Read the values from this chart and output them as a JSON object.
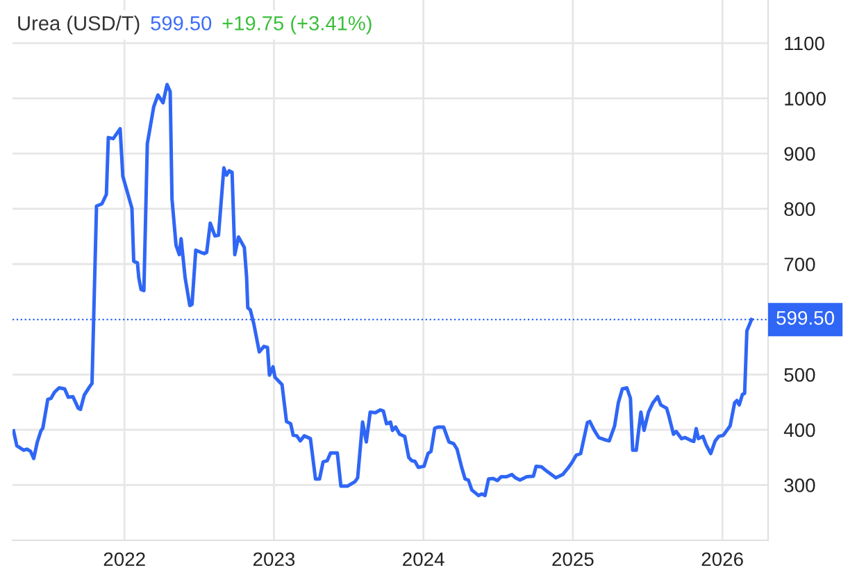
{
  "chart_data": {
    "type": "line",
    "title": "Urea (USD/T)",
    "annotations": [
      "599.50",
      "+19.75 (+3.41%)"
    ],
    "series": [
      {
        "color": "#2f66f5",
        "x": [
          2021.258,
          2021.28,
          2021.326,
          2021.347,
          2021.372,
          2021.393,
          2021.417,
          2021.441,
          2021.454,
          2021.487,
          2021.509,
          2021.532,
          2021.563,
          2021.6,
          2021.624,
          2021.655,
          2021.691,
          2021.706,
          2021.731,
          2021.767,
          2021.783,
          2021.813,
          2021.849,
          2021.879,
          2021.892,
          2021.925,
          2021.971,
          2021.989,
          2022.05,
          2022.062,
          2022.087,
          2022.096,
          2022.111,
          2022.13,
          2022.153,
          2022.196,
          2022.224,
          2022.258,
          2022.285,
          2022.306,
          2022.318,
          2022.345,
          2022.367,
          2022.379,
          2022.406,
          2022.437,
          2022.452,
          2022.477,
          2022.513,
          2022.534,
          2022.55,
          2022.574,
          2022.605,
          2022.629,
          2022.665,
          2022.683,
          2022.701,
          2022.72,
          2022.738,
          2022.763,
          2022.802,
          2022.817,
          2022.825,
          2022.842,
          2022.866,
          2022.902,
          2022.933,
          2022.957,
          2022.97,
          2022.994,
          2023.007,
          2023.054,
          2023.084,
          2023.112,
          2023.129,
          2023.153,
          2023.176,
          2023.203,
          2023.244,
          2023.278,
          2023.305,
          2023.329,
          2023.356,
          2023.379,
          2023.424,
          2023.448,
          2023.491,
          2023.542,
          2023.56,
          2023.593,
          2023.618,
          2023.644,
          2023.679,
          2023.712,
          2023.732,
          2023.753,
          2023.78,
          2023.793,
          2023.814,
          2023.841,
          2023.875,
          2023.902,
          2023.923,
          2023.943,
          2023.966,
          2024.004,
          2024.031,
          2024.051,
          2024.076,
          2024.099,
          2024.135,
          2024.171,
          2024.202,
          2024.225,
          2024.256,
          2024.279,
          2024.301,
          2024.324,
          2024.351,
          2024.369,
          2024.391,
          2024.412,
          2024.436,
          2024.466,
          2024.495,
          2024.52,
          2024.556,
          2024.592,
          2024.616,
          2024.646,
          2024.691,
          2024.736,
          2024.754,
          2024.79,
          2024.826,
          2024.886,
          2024.932,
          2024.971,
          2024.992,
          2025.022,
          2025.052,
          2025.097,
          2025.113,
          2025.143,
          2025.173,
          2025.213,
          2025.243,
          2025.279,
          2025.304,
          2025.331,
          2025.361,
          2025.385,
          2025.4,
          2025.424,
          2025.455,
          2025.476,
          2025.506,
          2025.536,
          2025.567,
          2025.588,
          2025.627,
          2025.643,
          2025.673,
          2025.691,
          2025.727,
          2025.749,
          2025.795,
          2025.809,
          2025.825,
          2025.84,
          2025.87,
          2025.891,
          2025.922,
          2025.952,
          2025.976,
          2026.006,
          2026.052,
          2026.082,
          2026.097,
          2026.113,
          2026.134,
          2026.149,
          2026.164,
          2026.195
        ],
        "values": [
          398,
          371,
          363,
          365,
          361,
          348,
          378,
          398,
          403,
          455,
          457,
          468,
          476,
          474,
          459,
          460,
          439,
          437,
          463,
          478,
          484,
          805,
          809,
          826,
          929,
          927,
          945,
          859,
          801,
          705,
          702,
          675,
          654,
          652,
          918,
          985,
          1006,
          992,
          1025,
          1012,
          818,
          734,
          717,
          746,
          675,
          625,
          627,
          725,
          721,
          719,
          721,
          774,
          751,
          752,
          874,
          861,
          869,
          866,
          717,
          749,
          730,
          677,
          621,
          617,
          591,
          541,
          551,
          549,
          499,
          514,
          495,
          482,
          415,
          411,
          390,
          389,
          380,
          389,
          384,
          311,
          311,
          342,
          344,
          358,
          358,
          298,
          298,
          306,
          313,
          414,
          378,
          432,
          431,
          436,
          434,
          411,
          414,
          399,
          405,
          392,
          388,
          350,
          344,
          343,
          332,
          334,
          357,
          361,
          403,
          405,
          405,
          378,
          375,
          365,
          332,
          311,
          309,
          291,
          285,
          281,
          284,
          281,
          311,
          312,
          308,
          315,
          315,
          319,
          313,
          309,
          315,
          316,
          334,
          333,
          325,
          313,
          319,
          332,
          340,
          354,
          357,
          413,
          415,
          399,
          386,
          382,
          380,
          407,
          449,
          474,
          476,
          457,
          363,
          363,
          432,
          399,
          432,
          449,
          460,
          445,
          439,
          424,
          392,
          397,
          384,
          386,
          380,
          379,
          402,
          384,
          388,
          373,
          357,
          380,
          388,
          390,
          407,
          449,
          453,
          445,
          464,
          466,
          579,
          599.5
        ]
      }
    ],
    "xlim": [
      2021.251,
      2026.306
    ],
    "xticks": [
      2022,
      2023,
      2024,
      2025,
      2026
    ],
    "ylim": [
      200,
      1178
    ],
    "yticks": [
      300,
      400,
      500,
      700,
      800,
      900,
      1000,
      1100
    ],
    "ref_lines": [
      {
        "axis": "y",
        "value": 599.5,
        "label": "599.50",
        "color": "#2f66f5",
        "line_style": "dotted"
      }
    ],
    "grid": true,
    "legend": false,
    "marker": "none",
    "line_style": "solid"
  }
}
